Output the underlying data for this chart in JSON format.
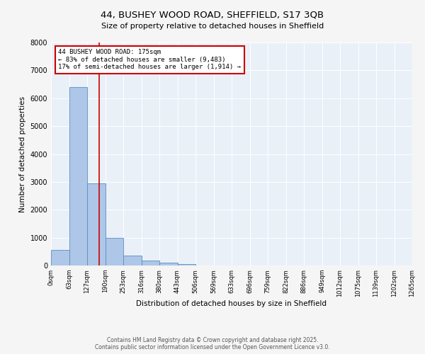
{
  "title_line1": "44, BUSHEY WOOD ROAD, SHEFFIELD, S17 3QB",
  "title_line2": "Size of property relative to detached houses in Sheffield",
  "xlabel": "Distribution of detached houses by size in Sheffield",
  "ylabel": "Number of detached properties",
  "bin_labels": [
    "0sqm",
    "63sqm",
    "127sqm",
    "190sqm",
    "253sqm",
    "316sqm",
    "380sqm",
    "443sqm",
    "506sqm",
    "569sqm",
    "633sqm",
    "696sqm",
    "759sqm",
    "822sqm",
    "886sqm",
    "949sqm",
    "1012sqm",
    "1075sqm",
    "1139sqm",
    "1202sqm",
    "1265sqm"
  ],
  "bar_heights": [
    550,
    6400,
    2950,
    1000,
    360,
    170,
    90,
    50,
    0,
    0,
    0,
    0,
    0,
    0,
    0,
    0,
    0,
    0,
    0,
    0
  ],
  "bar_color": "#AEC6E8",
  "bar_edge_color": "#5A8FC0",
  "vline_x": 2.67,
  "annotation_title": "44 BUSHEY WOOD ROAD: 175sqm",
  "annotation_line2": "← 83% of detached houses are smaller (9,483)",
  "annotation_line3": "17% of semi-detached houses are larger (1,914) →",
  "annotation_box_color": "#ffffff",
  "annotation_box_edge": "#cc0000",
  "vline_color": "#cc0000",
  "ylim": [
    0,
    8000
  ],
  "yticks": [
    0,
    1000,
    2000,
    3000,
    4000,
    5000,
    6000,
    7000,
    8000
  ],
  "background_color": "#eaf0f8",
  "fig_background_color": "#f5f5f5",
  "footer_line1": "Contains HM Land Registry data © Crown copyright and database right 2025.",
  "footer_line2": "Contains public sector information licensed under the Open Government Licence v3.0."
}
